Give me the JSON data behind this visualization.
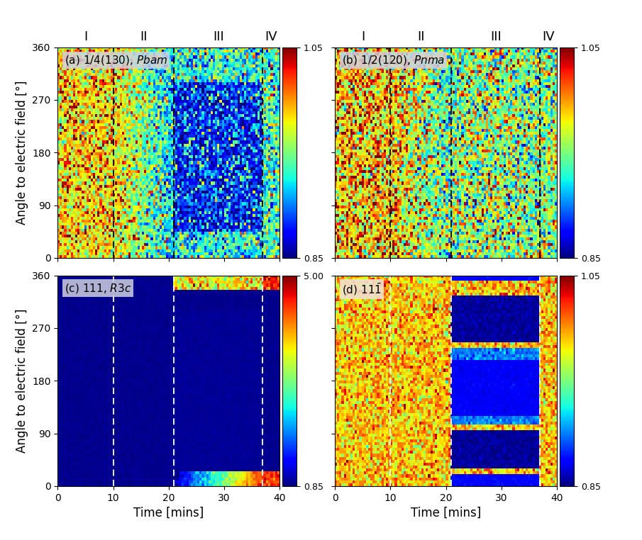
{
  "xlabel": "Time [mins]",
  "ylabel": "Angle to electric field [°]",
  "vmin_ab": 0.85,
  "vmax_ab": 1.05,
  "vmin_c": 0.85,
  "vmax_c": 5.0,
  "vmin_d": 0.85,
  "vmax_d": 1.05,
  "dashed_times": [
    10,
    21,
    37
  ],
  "region_labels": [
    "I",
    "II",
    "III",
    "IV"
  ],
  "region_label_times": [
    5,
    15.5,
    29,
    38.5
  ],
  "colorbar_ticks_ab": [
    0.85,
    1.05
  ],
  "colorbar_ticks_c": [
    0.85,
    5.0
  ],
  "colorbar_ticks_d": [
    0.85,
    1.05
  ]
}
